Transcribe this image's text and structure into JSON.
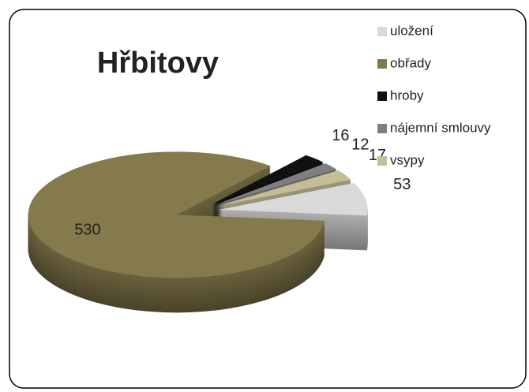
{
  "chart_data": {
    "type": "pie",
    "title": "Hřbitovy",
    "categories": [
      "uložení",
      "obřady",
      "hroby",
      "nájemní smlouvy",
      "vsypy"
    ],
    "values": [
      53,
      530,
      16,
      12,
      17
    ],
    "colors": [
      "#d9d9d9",
      "#857a4c",
      "#111111",
      "#7f7f7f",
      "#c4bd97"
    ]
  }
}
